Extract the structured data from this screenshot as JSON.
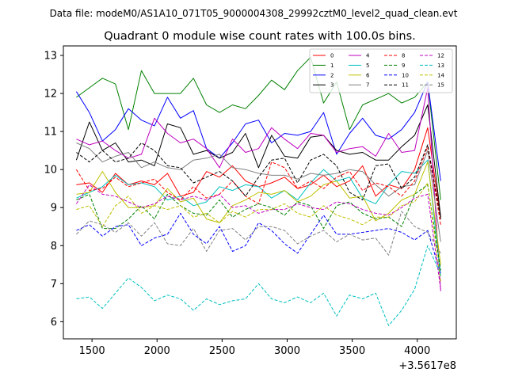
{
  "chart_data": {
    "type": "line",
    "suptitle": "Data file: modeM0/AS1A10_071T05_9000004308_29992cztM0_level2_quad_clean.evt",
    "title": "Quadrant 0 module wise count rates with 100.0s bins.",
    "xlabel": "",
    "ylabel": "",
    "x_offset_label": "+3.5617e8",
    "xlim": [
      1280,
      4300
    ],
    "ylim": [
      5.55,
      13.25
    ],
    "xticks": [
      1500,
      2000,
      2500,
      3000,
      3500,
      4000
    ],
    "yticks": [
      6,
      7,
      8,
      9,
      10,
      11,
      12,
      13
    ],
    "legend_position": "top-right",
    "x": [
      1380,
      1480,
      1580,
      1680,
      1780,
      1880,
      1980,
      2080,
      2180,
      2280,
      2380,
      2480,
      2580,
      2680,
      2780,
      2880,
      2980,
      3080,
      3180,
      3280,
      3380,
      3480,
      3580,
      3680,
      3780,
      3880,
      3980,
      4080,
      4180
    ],
    "series": [
      {
        "name": "0",
        "color": "#ff0000",
        "dash": "solid",
        "values": [
          9.6,
          9.65,
          9.4,
          9.9,
          9.6,
          9.7,
          9.6,
          9.9,
          9.3,
          9.4,
          9.95,
          9.8,
          10.1,
          9.7,
          9.55,
          9.65,
          9.8,
          9.5,
          9.6,
          9.85,
          9.55,
          9.7,
          10.1,
          9.3,
          9.6,
          9.5,
          10.0,
          11.1,
          8.7
        ]
      },
      {
        "name": "1",
        "color": "#008000",
        "dash": "solid",
        "values": [
          11.9,
          12.15,
          12.4,
          12.25,
          11.05,
          12.6,
          12.0,
          12.0,
          12.0,
          12.4,
          11.7,
          11.5,
          11.7,
          11.6,
          11.95,
          12.35,
          12.1,
          12.6,
          12.95,
          11.75,
          12.3,
          11.05,
          11.7,
          11.85,
          12.0,
          11.75,
          11.9,
          12.3,
          9.2
        ]
      },
      {
        "name": "2",
        "color": "#0000ff",
        "dash": "solid",
        "values": [
          12.05,
          11.5,
          10.75,
          11.05,
          11.6,
          11.3,
          11.15,
          11.9,
          11.35,
          11.55,
          10.55,
          10.3,
          10.7,
          11.2,
          11.3,
          10.7,
          10.95,
          10.9,
          11.0,
          11.5,
          10.4,
          10.95,
          11.35,
          10.9,
          10.8,
          11.05,
          11.5,
          12.3,
          9.7
        ]
      },
      {
        "name": "3",
        "color": "#000000",
        "dash": "solid",
        "values": [
          10.25,
          11.25,
          10.5,
          10.7,
          10.2,
          10.25,
          10.1,
          11.2,
          11.1,
          10.4,
          10.5,
          10.3,
          10.45,
          10.95,
          10.05,
          10.9,
          10.35,
          10.3,
          10.85,
          10.9,
          10.5,
          10.4,
          10.45,
          10.25,
          10.25,
          10.6,
          10.9,
          11.7,
          8.75
        ]
      },
      {
        "name": "4",
        "color": "#bf00bf",
        "dash": "solid",
        "values": [
          10.8,
          10.65,
          10.75,
          10.5,
          10.3,
          10.4,
          11.35,
          10.95,
          10.7,
          10.8,
          10.55,
          10.05,
          10.8,
          10.45,
          10.55,
          11.1,
          10.8,
          10.55,
          10.95,
          10.9,
          10.45,
          10.55,
          10.6,
          10.35,
          10.95,
          10.45,
          10.5,
          12.15,
          6.8
        ]
      },
      {
        "name": "5",
        "color": "#00bfbf",
        "dash": "solid",
        "values": [
          9.25,
          9.4,
          9.55,
          9.85,
          9.6,
          9.65,
          9.55,
          9.2,
          9.3,
          9.05,
          9.15,
          9.55,
          9.45,
          9.6,
          9.55,
          9.25,
          9.45,
          9.2,
          9.65,
          10.0,
          9.7,
          9.8,
          9.25,
          9.1,
          9.6,
          9.95,
          9.9,
          10.25,
          7.2
        ]
      },
      {
        "name": "6",
        "color": "#bfbf00",
        "dash": "solid",
        "values": [
          9.35,
          9.4,
          9.95,
          9.4,
          9.0,
          9.0,
          9.05,
          9.5,
          9.15,
          9.25,
          8.7,
          8.6,
          9.05,
          9.2,
          9.4,
          9.35,
          9.45,
          9.15,
          9.3,
          9.6,
          9.7,
          9.25,
          9.3,
          8.65,
          8.85,
          9.2,
          9.35,
          10.2,
          7.5
        ]
      },
      {
        "name": "7",
        "color": "#808080",
        "dash": "solid",
        "values": [
          10.7,
          10.55,
          10.2,
          10.35,
          10.45,
          10.05,
          10.2,
          10.05,
          10.0,
          10.25,
          10.3,
          10.4,
          10.05,
          10.0,
          9.9,
          9.85,
          9.85,
          9.75,
          9.9,
          9.85,
          9.9,
          10.0,
          9.95,
          9.6,
          9.3,
          9.55,
          9.6,
          10.5,
          8.1
        ]
      },
      {
        "name": "8",
        "color": "#ff0000",
        "dash": "dashed",
        "values": [
          10.0,
          9.45,
          9.5,
          9.8,
          9.55,
          9.65,
          9.75,
          9.4,
          9.2,
          9.55,
          9.25,
          9.35,
          9.7,
          9.3,
          9.1,
          10.2,
          10.05,
          9.5,
          9.7,
          9.5,
          9.8,
          9.95,
          9.45,
          9.65,
          9.55,
          9.3,
          9.7,
          10.6,
          8.55
        ]
      },
      {
        "name": "9",
        "color": "#008000",
        "dash": "dashed",
        "values": [
          9.2,
          9.35,
          8.45,
          8.45,
          8.7,
          9.05,
          8.7,
          9.35,
          9.05,
          8.85,
          8.8,
          9.2,
          8.75,
          8.95,
          9.1,
          9.0,
          8.8,
          9.15,
          9.05,
          8.45,
          9.05,
          9.15,
          8.85,
          8.7,
          8.75,
          8.5,
          9.35,
          9.6,
          7.35
        ]
      },
      {
        "name": "10",
        "color": "#0000ff",
        "dash": "dashed",
        "values": [
          8.4,
          8.55,
          8.25,
          8.5,
          8.55,
          8.0,
          8.2,
          8.3,
          8.85,
          8.3,
          8.05,
          8.5,
          7.85,
          8.0,
          8.6,
          8.4,
          8.05,
          7.8,
          8.3,
          8.8,
          8.3,
          8.3,
          8.35,
          8.4,
          8.45,
          8.35,
          8.15,
          8.4,
          7.25
        ]
      },
      {
        "name": "11",
        "color": "#000000",
        "dash": "dashed",
        "values": [
          10.45,
          10.2,
          10.5,
          10.2,
          10.3,
          10.7,
          10.5,
          10.1,
          10.05,
          9.65,
          9.8,
          9.95,
          9.7,
          9.3,
          9.8,
          10.25,
          10.3,
          9.65,
          10.25,
          10.4,
          10.1,
          9.4,
          9.2,
          10.1,
          10.15,
          9.5,
          9.8,
          10.65,
          8.7
        ]
      },
      {
        "name": "12",
        "color": "#bf00bf",
        "dash": "dashed",
        "values": [
          9.1,
          9.6,
          9.35,
          9.3,
          9.15,
          9.0,
          9.1,
          9.3,
          9.2,
          9.3,
          9.2,
          9.35,
          9.0,
          9.05,
          8.85,
          8.95,
          8.95,
          9.1,
          9.0,
          8.95,
          9.15,
          9.1,
          8.95,
          8.85,
          8.8,
          9.0,
          9.25,
          9.35,
          6.85
        ]
      },
      {
        "name": "13",
        "color": "#00bfbf",
        "dash": "dashed",
        "values": [
          6.6,
          6.65,
          6.35,
          6.75,
          7.15,
          6.9,
          6.55,
          6.7,
          6.6,
          6.3,
          6.6,
          6.45,
          6.55,
          6.6,
          7.0,
          6.6,
          6.5,
          6.65,
          6.5,
          6.75,
          6.15,
          6.7,
          6.6,
          6.75,
          5.9,
          6.3,
          6.85,
          8.0,
          7.25
        ]
      },
      {
        "name": "14",
        "color": "#bfbf00",
        "dash": "dashed",
        "values": [
          8.95,
          9.05,
          8.5,
          9.05,
          9.3,
          8.85,
          9.05,
          8.95,
          9.05,
          8.75,
          8.85,
          8.6,
          8.9,
          8.75,
          8.95,
          8.95,
          9.1,
          8.85,
          8.75,
          9.05,
          8.8,
          8.7,
          8.55,
          8.75,
          8.75,
          9.05,
          9.15,
          9.65,
          7.05
        ]
      },
      {
        "name": "15",
        "color": "#808080",
        "dash": "dashed",
        "values": [
          8.3,
          8.65,
          8.55,
          8.35,
          8.6,
          8.25,
          8.6,
          8.05,
          8.0,
          8.45,
          7.85,
          8.4,
          8.45,
          8.15,
          8.5,
          8.5,
          8.4,
          8.05,
          8.25,
          8.4,
          8.1,
          8.3,
          8.15,
          8.2,
          7.75,
          8.9,
          8.5,
          8.35,
          7.8
        ]
      }
    ]
  }
}
